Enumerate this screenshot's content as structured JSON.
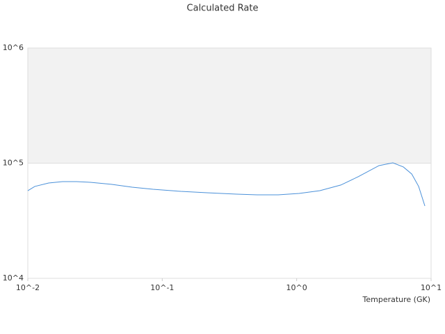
{
  "chart_data": {
    "type": "line",
    "title": "Calculated Rate",
    "x_label": "Temperature (GK)",
    "x": [
      0.01,
      0.01127,
      0.01429,
      0.01815,
      0.023,
      0.0292,
      0.0418,
      0.0597,
      0.0853,
      0.1374,
      0.2213,
      0.3565,
      0.509,
      0.728,
      1.042,
      1.489,
      2.13,
      2.87,
      4.1,
      5.2,
      6.22,
      7.18,
      8.08,
      8.99
    ],
    "series": [
      {
        "color": "#4a90d9",
        "values": [
          57700,
          62800,
          67300,
          69200,
          69200,
          68200,
          65500,
          61900,
          59300,
          56900,
          55300,
          53800,
          53100,
          53100,
          54600,
          57700,
          64600,
          76300,
          95300,
          100700,
          92700,
          80500,
          62800,
          42500
        ]
      }
    ],
    "xscale": "log",
    "yscale": "log",
    "xlim": [
      0.01,
      10
    ],
    "ylim": [
      10000,
      1000000
    ],
    "xticks": [
      {
        "value": 0.01,
        "label": "10^-2"
      },
      {
        "value": 0.1,
        "label": "10^-1"
      },
      {
        "value": 1,
        "label": "10^0"
      },
      {
        "value": 10,
        "label": "10^1"
      }
    ],
    "yticks": [
      {
        "value": 10000,
        "label": "10^4"
      },
      {
        "value": 100000,
        "label": "10^5"
      },
      {
        "value": 1000000,
        "label": "10^6"
      }
    ],
    "grid": true
  }
}
